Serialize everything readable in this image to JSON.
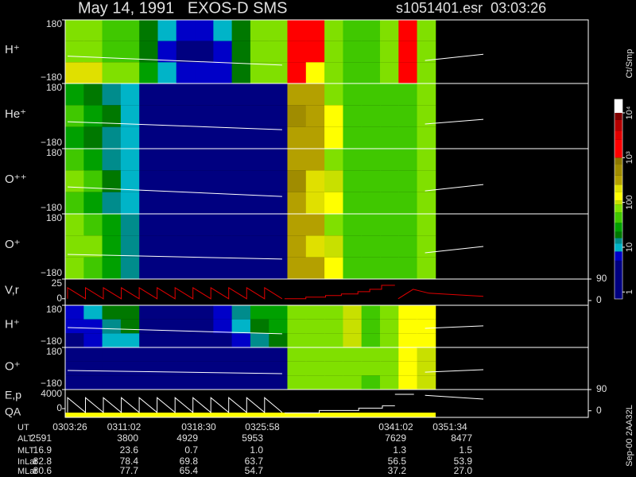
{
  "header": {
    "left": "May 14, 1991   EXOS-D SMS",
    "right": "s1051401.esr  03:03:26"
  },
  "time_axis": {
    "xlim": [
      2.8,
      69.1
    ]
  },
  "chart_data": [
    {
      "type": "heatmap",
      "ylabel": "H⁺",
      "ylim": [
        -180,
        180
      ],
      "yticks": [
        {
          "value": -180,
          "label": "−180"
        },
        180
      ],
      "bins": [
        2.8,
        5.15,
        7.49,
        9.84,
        12.19,
        14.54,
        16.88,
        19.23,
        21.58,
        23.92,
        26.27,
        28.62,
        30.96,
        33.31,
        35.66,
        38.01,
        40.35,
        42.7,
        45.05,
        47.39,
        49.74
      ],
      "y_bins": [
        180,
        60,
        -60,
        -180
      ],
      "z": [
        [
          60,
          60,
          50,
          40,
          20,
          8,
          5,
          5,
          8,
          20,
          60,
          60,
          2000,
          1500,
          60,
          50,
          50,
          60,
          1000,
          80
        ],
        [
          60,
          60,
          50,
          40,
          20,
          6,
          4,
          4,
          6,
          20,
          60,
          60,
          2000,
          2000,
          60,
          50,
          50,
          60,
          1000,
          80
        ],
        [
          200,
          200,
          80,
          60,
          30,
          8,
          5,
          5,
          6,
          20,
          60,
          60,
          2000,
          150,
          60,
          50,
          50,
          60,
          1000,
          80
        ]
      ],
      "lines": [
        {
          "color": "#ffffff",
          "x": [
            3.1,
            30.3
          ],
          "y": [
            -25,
            -76
          ]
        },
        {
          "color": "#ffffff",
          "x": [
            48.4,
            55.8
          ],
          "y": [
            -50,
            -15
          ]
        }
      ]
    },
    {
      "type": "heatmap",
      "ylabel": "He⁺",
      "ylim": [
        -180,
        180
      ],
      "yticks": [
        {
          "value": -180,
          "label": "−180"
        },
        180
      ],
      "bins": [
        2.8,
        5.15,
        7.49,
        9.84,
        12.19,
        14.54,
        16.88,
        19.23,
        21.58,
        23.92,
        26.27,
        28.62,
        30.96,
        33.31,
        35.66,
        38.01,
        40.35,
        42.7,
        45.05,
        47.39,
        49.74
      ],
      "y_bins": [
        180,
        60,
        -60,
        -180
      ],
      "z": [
        [
          30,
          20,
          15,
          8,
          3,
          2,
          2,
          2,
          2,
          2,
          2,
          3,
          300,
          300,
          80,
          40,
          40,
          40,
          50,
          70
        ],
        [
          50,
          30,
          20,
          10,
          3,
          2,
          2,
          2,
          2,
          2,
          2,
          3,
          400,
          300,
          120,
          40,
          40,
          40,
          50,
          70
        ],
        [
          30,
          20,
          15,
          8,
          3,
          2,
          2,
          2,
          2,
          2,
          2,
          3,
          300,
          300,
          150,
          40,
          40,
          40,
          50,
          70
        ]
      ],
      "lines": [
        {
          "color": "#ffffff",
          "x": [
            3.1,
            30.3
          ],
          "y": [
            -31,
            -75
          ]
        },
        {
          "color": "#ffffff",
          "x": [
            48.4,
            55.8
          ],
          "y": [
            -44,
            -18
          ]
        }
      ]
    },
    {
      "type": "heatmap",
      "ylabel": "O⁺⁺",
      "ylim": [
        -180,
        180
      ],
      "yticks": [
        {
          "value": -180,
          "label": "−180"
        },
        180
      ],
      "bins": [
        2.8,
        5.15,
        7.49,
        9.84,
        12.19,
        14.54,
        16.88,
        19.23,
        21.58,
        23.92,
        26.27,
        28.62,
        30.96,
        33.31,
        35.66,
        38.01,
        40.35,
        42.7,
        45.05,
        47.39,
        49.74
      ],
      "y_bins": [
        180,
        60,
        -60,
        -180
      ],
      "z": [
        [
          40,
          25,
          15,
          8,
          3,
          2,
          2,
          2,
          2,
          2,
          2,
          3,
          300,
          300,
          80,
          40,
          40,
          40,
          50,
          70
        ],
        [
          60,
          40,
          20,
          10,
          3,
          2,
          2,
          2,
          2,
          2,
          2,
          3,
          400,
          200,
          100,
          40,
          40,
          40,
          50,
          70
        ],
        [
          40,
          25,
          15,
          8,
          3,
          2,
          2,
          2,
          2,
          2,
          2,
          3,
          300,
          200,
          150,
          40,
          40,
          40,
          50,
          70
        ]
      ],
      "lines": [
        {
          "color": "#ffffff",
          "x": [
            3.1,
            30.3
          ],
          "y": [
            -31,
            -84
          ]
        },
        {
          "color": "#ffffff",
          "x": [
            48.4,
            55.8
          ],
          "y": [
            -53,
            -18
          ]
        }
      ]
    },
    {
      "type": "heatmap",
      "ylabel": "O⁺",
      "ylim": [
        -180,
        180
      ],
      "yticks": [
        {
          "value": -180,
          "label": "−180"
        },
        180
      ],
      "bins": [
        2.8,
        5.15,
        7.49,
        9.84,
        12.19,
        14.54,
        16.88,
        19.23,
        21.58,
        23.92,
        26.27,
        28.62,
        30.96,
        33.31,
        35.66,
        38.01,
        40.35,
        42.7,
        45.05,
        47.39,
        49.74
      ],
      "y_bins": [
        180,
        60,
        -60,
        -180
      ],
      "z": [
        [
          60,
          40,
          25,
          12,
          3,
          2,
          2,
          2,
          2,
          2,
          2,
          3,
          300,
          300,
          80,
          40,
          40,
          40,
          50,
          70
        ],
        [
          80,
          60,
          30,
          15,
          4,
          2,
          2,
          2,
          2,
          2,
          2,
          3,
          300,
          200,
          100,
          40,
          40,
          40,
          50,
          70
        ],
        [
          60,
          40,
          25,
          12,
          3,
          2,
          2,
          2,
          2,
          2,
          2,
          3,
          300,
          300,
          150,
          40,
          40,
          40,
          50,
          70
        ]
      ],
      "lines": [
        {
          "color": "#ffffff",
          "x": [
            3.1,
            30.3
          ],
          "y": [
            -44,
            -70
          ]
        },
        {
          "color": "#ffffff",
          "x": [
            48.4,
            55.8
          ],
          "y": [
            -35,
            0
          ]
        }
      ]
    },
    {
      "type": "line",
      "ylabel": "V,r",
      "ylim": [
        -8.3,
        25
      ],
      "yticks": [
        0,
        25
      ],
      "y2lim": [
        -20,
        90
      ],
      "y2ticks": [
        0,
        90
      ],
      "lines": [
        {
          "color": "#e00000",
          "x": [
            3.1,
            3.1,
            5.37,
            5.37,
            7.64,
            7.64,
            9.91,
            9.91,
            12.18,
            12.18,
            14.45,
            14.45,
            16.72,
            16.72,
            18.99,
            18.99,
            21.26,
            21.26,
            23.53,
            23.53,
            25.8,
            25.8,
            28.07,
            28.07,
            30.3
          ],
          "y": [
            0,
            14,
            0,
            14,
            0,
            14,
            0,
            14,
            0,
            14,
            0,
            14,
            0,
            14,
            0,
            14,
            0,
            14,
            0,
            14,
            0,
            14,
            0,
            14,
            0
          ]
        },
        {
          "color": "#e00000",
          "x": [
            30.6,
            33.3,
            33.3,
            35.8,
            35.8,
            37.8,
            37.8,
            39.9,
            39.9,
            41.4,
            41.4,
            42.9,
            42.9,
            44.6
          ],
          "y": [
            0,
            0,
            2,
            2,
            4,
            4,
            6,
            6,
            9,
            9,
            12,
            12,
            17,
            17
          ]
        },
        {
          "color": "#e00000",
          "x": [
            45.0,
            46.9,
            48.9,
            55.8
          ],
          "y": [
            0,
            12,
            7,
            3
          ]
        }
      ]
    },
    {
      "type": "heatmap",
      "ylabel": "H⁺",
      "ylim": [
        -180,
        180
      ],
      "yticks": [
        {
          "value": -180,
          "label": "−180"
        },
        180
      ],
      "bins": [
        2.8,
        5.15,
        7.49,
        9.84,
        12.19,
        14.54,
        16.88,
        19.23,
        21.58,
        23.92,
        26.27,
        28.62,
        30.96,
        33.31,
        35.66,
        38.01,
        40.35,
        42.7,
        45.05,
        47.39,
        49.74
      ],
      "y_bins": [
        180,
        60,
        -60,
        -180
      ],
      "z": [
        [
          6,
          8,
          20,
          20,
          4,
          3,
          3,
          3,
          6,
          12,
          25,
          30,
          70,
          70,
          70,
          90,
          40,
          60,
          150,
          120
        ],
        [
          5,
          6,
          15,
          20,
          3,
          2,
          2,
          3,
          5,
          10,
          20,
          30,
          70,
          70,
          70,
          90,
          40,
          60,
          150,
          120
        ],
        [
          4,
          5,
          8,
          10,
          3,
          2,
          2,
          2,
          3,
          6,
          12,
          20,
          70,
          70,
          70,
          90,
          40,
          60,
          150,
          120
        ]
      ],
      "lines": [
        {
          "color": "#ffffff",
          "x": [
            3.1,
            30.3
          ],
          "y": [
            -10,
            -64
          ]
        },
        {
          "color": "#ffffff",
          "x": [
            48.4,
            55.8
          ],
          "y": [
            -17,
            4
          ]
        }
      ]
    },
    {
      "type": "heatmap",
      "ylabel": "O⁺",
      "ylim": [
        -180,
        180
      ],
      "yticks": [
        {
          "value": -180,
          "label": "−180"
        },
        180
      ],
      "bins": [
        2.8,
        5.15,
        7.49,
        9.84,
        12.19,
        14.54,
        16.88,
        19.23,
        21.58,
        23.92,
        26.27,
        28.62,
        30.96,
        33.31,
        35.66,
        38.01,
        40.35,
        42.7,
        45.05,
        47.39,
        49.74
      ],
      "y_bins": [
        180,
        60,
        -60,
        -180
      ],
      "z": [
        [
          3,
          2,
          2,
          2,
          2,
          2,
          2,
          2,
          2,
          2,
          3,
          3,
          60,
          60,
          60,
          60,
          60,
          60,
          150,
          100
        ],
        [
          3,
          2,
          2,
          2,
          2,
          2,
          2,
          2,
          2,
          2,
          3,
          3,
          60,
          60,
          60,
          60,
          60,
          60,
          150,
          100
        ],
        [
          3,
          2,
          2,
          2,
          2,
          2,
          2,
          2,
          2,
          2,
          3,
          3,
          60,
          60,
          60,
          60,
          40,
          60,
          150,
          100
        ]
      ],
      "lines": [
        {
          "color": "#ffffff",
          "x": [
            3.1,
            30.3
          ],
          "y": [
            -17,
            -44
          ]
        },
        {
          "color": "#ffffff",
          "x": [
            48.4,
            55.8
          ],
          "y": [
            -31,
            -10
          ]
        }
      ]
    },
    {
      "type": "line",
      "ylabel": "E,p",
      "ylabel2": "QA",
      "ylim": [
        -1833,
        4000
      ],
      "yticks": [
        0,
        4000
      ],
      "y2lim": [
        -28,
        90
      ],
      "y2ticks": [
        0,
        90
      ],
      "lines": [
        {
          "color": "#ffffff",
          "x": [
            3.1,
            3.1,
            5.37,
            5.37,
            7.64,
            7.64,
            9.91,
            9.91,
            12.18,
            12.18,
            14.45,
            14.45,
            16.72,
            16.72,
            18.99,
            18.99,
            21.26,
            21.26,
            23.53,
            23.53,
            25.8,
            25.8,
            28.07,
            28.07,
            30.3
          ],
          "y": [
            -800,
            2300,
            -800,
            2300,
            -800,
            2300,
            -800,
            2300,
            -800,
            2300,
            -800,
            2300,
            -800,
            2300,
            -800,
            2300,
            -800,
            2300,
            -800,
            2300,
            -800,
            2300,
            -800,
            2300,
            -800
          ]
        },
        {
          "color": "#ffffff",
          "x": [
            30.6,
            35,
            35,
            40,
            40,
            43,
            43,
            44.6
          ],
          "y": [
            -900,
            -900,
            -400,
            -400,
            100,
            100,
            600,
            600
          ]
        },
        {
          "color": "#ffffff",
          "x": [
            44.6,
            47
          ],
          "y": [
            3000,
            3000
          ]
        },
        {
          "color": "#ffffff",
          "x": [
            48.4,
            55.8
          ],
          "y": [
            2800,
            2000
          ]
        }
      ]
    }
  ],
  "colorbar": {
    "label": "Ct/Smp",
    "log": true,
    "clim": [
      0.7,
      20000
    ],
    "ticks": [
      1,
      10,
      100,
      {
        "value": 1000,
        "label": "10³"
      },
      {
        "value": 10000,
        "label": "10⁴"
      }
    ],
    "colorscale": [
      {
        "value": 1,
        "color": "#000080"
      },
      {
        "value": 5,
        "color": "#0000c8"
      },
      {
        "value": 8,
        "color": "#00b4c8"
      },
      {
        "value": 12,
        "color": "#008c8c"
      },
      {
        "value": 16,
        "color": "#007800"
      },
      {
        "value": 22,
        "color": "#00a000"
      },
      {
        "value": 35,
        "color": "#40c800"
      },
      {
        "value": 60,
        "color": "#80e000"
      },
      {
        "value": 90,
        "color": "#c8e000"
      },
      {
        "value": 110,
        "color": "#ffff00"
      },
      {
        "value": 170,
        "color": "#e0e000"
      },
      {
        "value": 250,
        "color": "#b4a000"
      },
      {
        "value": 400,
        "color": "#a08c00"
      },
      {
        "value": 700,
        "color": "#8c7800"
      },
      {
        "value": 1000,
        "color": "#ff0000"
      },
      {
        "value": 2500,
        "color": "#e00000"
      },
      {
        "value": 4000,
        "color": "#b40000"
      },
      {
        "value": 7000,
        "color": "#800000"
      },
      {
        "value": 10000,
        "color": "#ffffff"
      }
    ]
  },
  "footer_id": "Sep-00 2AA32L",
  "orbit_table": {
    "rows": [
      {
        "label": "UT",
        "cells": [
          "0303:26",
          "0311:02",
          "0318:30",
          "0325:58",
          "0341:02",
          "0351:34"
        ]
      },
      {
        "label": "ALT",
        "cells": [
          "2591",
          "3800",
          "4929",
          "5953",
          "7629",
          "8477"
        ]
      },
      {
        "label": "MLT",
        "cells": [
          "16.9",
          "23.6",
          "0.7",
          "1.0",
          "1.3",
          "1.5"
        ]
      },
      {
        "label": "InLat",
        "cells": [
          "82.8",
          "78.4",
          "69.8",
          "63.7",
          "56.5",
          "53.9"
        ]
      },
      {
        "label": "MLat",
        "cells": [
          "80.6",
          "77.7",
          "65.4",
          "54.7",
          "37.2",
          "27.0"
        ]
      }
    ]
  }
}
